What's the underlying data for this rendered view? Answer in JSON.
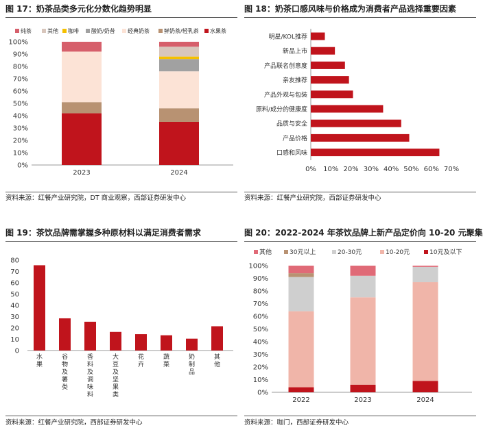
{
  "figures": [
    {
      "title": "图 17：奶茶品类多元化分数化趋势明显",
      "source": "资料来源：红餐产业研究院，DT 商业观察，西部证券研发中心"
    },
    {
      "title": "图 18：奶茶口感风味与价格成为消费者产品选择重要因素",
      "source": "资料来源：红餐产业研究院，西部证券研发中心"
    },
    {
      "title": "图 19：茶饮品牌需掌握多种原材料以满足消费者需求",
      "source": "资料来源：红餐产业研究院，西部证券研发中心"
    },
    {
      "title": "图 20：2022-2024 年茶饮品牌上新产品定价向 10-20 元聚集",
      "source": "资料来源：咖门，西部证券研发中心"
    }
  ],
  "chart_data": [
    {
      "type": "bar",
      "stacked": true,
      "title": "图 17：奶茶品类多元化分数化趋势明显",
      "categories": [
        "2023",
        "2024"
      ],
      "ylim": [
        0,
        100
      ],
      "yticks": [
        "0%",
        "10%",
        "20%",
        "30%",
        "40%",
        "50%",
        "60%",
        "70%",
        "80%",
        "90%",
        "100%"
      ],
      "legend_position": "top",
      "series": [
        {
          "name": "水果茶",
          "color": "#c0141c",
          "values": [
            42,
            35
          ]
        },
        {
          "name": "鲜奶茶/轻乳茶",
          "color": "#b89272",
          "values": [
            9,
            11
          ]
        },
        {
          "name": "经典奶茶",
          "color": "#fce3d6",
          "values": [
            41,
            30
          ]
        },
        {
          "name": "酸奶/奶昔",
          "color": "#a1a1a1",
          "values": [
            0,
            10
          ]
        },
        {
          "name": "咖啡",
          "color": "#f5c000",
          "values": [
            0,
            2
          ]
        },
        {
          "name": "其他",
          "color": "#d8c6bc",
          "values": [
            0,
            8
          ]
        },
        {
          "name": "纯茶",
          "color": "#d65f6b",
          "values": [
            8,
            4
          ]
        }
      ]
    },
    {
      "type": "bar",
      "orientation": "horizontal",
      "title": "图 18：奶茶口感风味与价格成为消费者产品选择重要因素",
      "categories": [
        "明星/KOL推荐",
        "新品上市",
        "产品联名创意度",
        "亲友推荐",
        "产品外观与包装",
        "原料/成分的健康度",
        "品质与安全",
        "产品价格",
        "口感和风味"
      ],
      "values": [
        7,
        12,
        17,
        19,
        21,
        36,
        45,
        49,
        64
      ],
      "xlim": [
        0,
        70
      ],
      "xticks": [
        "0%",
        "10%",
        "20%",
        "30%",
        "40%",
        "50%",
        "60%",
        "70%"
      ],
      "color": "#c0141c"
    },
    {
      "type": "bar",
      "title": "图 19：茶饮品牌需掌握多种原材料以满足消费者需求",
      "categories": [
        "水果",
        "谷物及薯类",
        "香料及调味料",
        "大豆及坚果类",
        "花卉",
        "蔬菜",
        "奶制品",
        "其他"
      ],
      "values": [
        75.5,
        28.5,
        25.5,
        16.5,
        14.5,
        13.5,
        10.5,
        21.5
      ],
      "ylim": [
        0,
        80
      ],
      "yticks": [
        "0",
        "10",
        "20",
        "30",
        "40",
        "50",
        "60",
        "70",
        "80"
      ],
      "color": "#c0141c"
    },
    {
      "type": "bar",
      "stacked": true,
      "title": "图 20：2022-2024 年茶饮品牌上新产品定价向 10-20 元聚集",
      "categories": [
        "2022",
        "2023",
        "2024"
      ],
      "ylim": [
        0,
        100
      ],
      "yticks": [
        "0%",
        "10%",
        "20%",
        "30%",
        "40%",
        "50%",
        "60%",
        "70%",
        "80%",
        "90%",
        "100%"
      ],
      "legend_position": "top",
      "series": [
        {
          "name": "10元及以下",
          "color": "#c0141c",
          "values": [
            4,
            6,
            9
          ]
        },
        {
          "name": "10-20元",
          "color": "#f0b5a9",
          "values": [
            60,
            69,
            78
          ]
        },
        {
          "name": "20-30元",
          "color": "#cfcfcf",
          "values": [
            27,
            17,
            12
          ]
        },
        {
          "name": "30元以上",
          "color": "#b89272",
          "values": [
            3,
            0,
            0
          ]
        },
        {
          "name": "其他",
          "color": "#e06a77",
          "values": [
            6,
            8,
            1
          ]
        }
      ]
    }
  ]
}
